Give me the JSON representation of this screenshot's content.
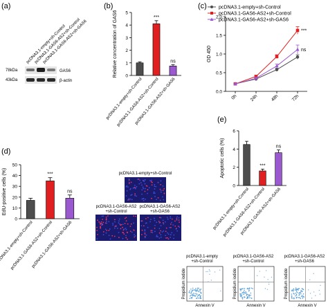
{
  "panels": {
    "a": {
      "label": "(a)",
      "lanes": [
        "pcDNA3.1-empty+sh-Control",
        "pcDNA3.1-GAS6-AS2+sh-Control",
        "pcDNA3.1-GAS6-AS2+sh-GAS6"
      ],
      "markers": [
        "78kDa",
        "43kDa"
      ],
      "bands": [
        "GAS6",
        "β-actin"
      ]
    },
    "b": {
      "label": "(b)"
    },
    "c": {
      "label": "(c)"
    },
    "d": {
      "label": "(d)",
      "image_captions": [
        "pcDNA3.1-empty+sh-Control",
        "pcDNA3.1-GAS6-AS2\n+sh-Control",
        "pcDNA3.1-GAS6-AS2\n+sh-GAS6"
      ]
    },
    "e": {
      "label": "(e)",
      "flow_captions": [
        "pcDNA3.1-empty\n+sh-Control",
        "pcDNA3.1-GAS6-AS2\n+sh-Control",
        "pcDNA3.1-GAS6-AS2\n+sh-GAS6"
      ],
      "flow_xlabel": "Annexin V",
      "flow_ylabel": "Propidium iodide"
    }
  },
  "colors": {
    "control": "#4d4d4d",
    "gas6as2": "#e02020",
    "shgas6": "#9b59d0"
  },
  "chart_data": [
    {
      "id": "b",
      "type": "bar",
      "ylabel": "Relative concentration of GAS6",
      "ylim": [
        0,
        5
      ],
      "yticks": [
        0,
        1,
        2,
        3,
        4,
        5
      ],
      "categories": [
        "pcDNA3.1-empty+sh-Control",
        "pcDNA3.1-GAS6-AS2+sh-Control",
        "pcDNA3.1-GAS6-AS2+sh-GAS6"
      ],
      "values": [
        1.0,
        4.1,
        0.75
      ],
      "errors": [
        0.08,
        0.25,
        0.1
      ],
      "annotations": [
        "",
        "***",
        "ns"
      ]
    },
    {
      "id": "c",
      "type": "line",
      "ylabel": "OD 450",
      "ylim": [
        0,
        2.0
      ],
      "yticks": [
        0.0,
        0.5,
        1.0,
        1.5,
        2.0
      ],
      "x": [
        "0h",
        "24h",
        "48h",
        "72h"
      ],
      "series": [
        {
          "name": "pcDNA3.1-empty+sh-Control",
          "values": [
            0.2,
            0.33,
            0.58,
            0.92
          ],
          "errors": [
            0.02,
            0.03,
            0.04,
            0.06
          ],
          "marker": "circle"
        },
        {
          "name": "pcDNA3.1-GAS6-AS2+sh-Control",
          "values": [
            0.2,
            0.4,
            0.93,
            1.63
          ],
          "errors": [
            0.02,
            0.03,
            0.05,
            0.1
          ],
          "marker": "square"
        },
        {
          "name": "pcDNA3.1-GAS6-AS2+sh-GAS6",
          "values": [
            0.2,
            0.35,
            0.68,
            1.12
          ],
          "errors": [
            0.02,
            0.03,
            0.05,
            0.12
          ],
          "marker": "triangle"
        }
      ],
      "annotations": [
        {
          "series": 1,
          "text": "***"
        },
        {
          "series": 2,
          "text": "ns"
        }
      ],
      "legend": "top-left"
    },
    {
      "id": "d",
      "type": "bar",
      "ylabel": "EdU-positive cells (%)",
      "ylim": [
        0,
        50
      ],
      "yticks": [
        0,
        10,
        20,
        30,
        40,
        50
      ],
      "categories": [
        "pcDNA3.1-empty+sh-Control",
        "pcDNA3.1-GAS6-AS2+sh-Control",
        "pcDNA3.1-GAS6-AS2+sh-GAS6"
      ],
      "values": [
        17,
        35,
        19
      ],
      "errors": [
        2,
        3,
        3
      ],
      "annotations": [
        "",
        "***",
        "ns"
      ]
    },
    {
      "id": "e",
      "type": "bar",
      "ylabel": "Apoptotic cells (%)",
      "ylim": [
        0,
        6
      ],
      "yticks": [
        0,
        2,
        4,
        6
      ],
      "categories": [
        "pcDNA3.1-empty+sh-Control",
        "pcDNA3.1-GAS6-AS2+sh-Control",
        "pcDNA3.1-GAS6-AS2+sh-GAS6"
      ],
      "values": [
        4.5,
        1.6,
        3.6
      ],
      "errors": [
        0.35,
        0.2,
        0.3
      ],
      "annotations": [
        "",
        "***",
        "ns"
      ]
    }
  ]
}
